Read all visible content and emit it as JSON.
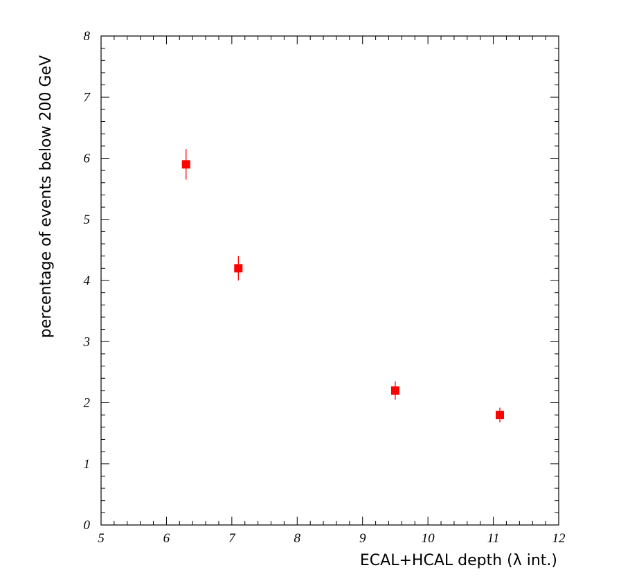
{
  "chart_data": {
    "type": "scatter",
    "title": "",
    "xlabel": "ECAL+HCAL  depth (λ int.)",
    "ylabel": "percentage of events below 200 GeV",
    "xlim": [
      5,
      12
    ],
    "ylim": [
      0,
      8
    ],
    "x_ticks": [
      "5",
      "6",
      "7",
      "8",
      "9",
      "10",
      "11",
      "12"
    ],
    "y_ticks": [
      "0",
      "1",
      "2",
      "3",
      "4",
      "5",
      "6",
      "7",
      "8"
    ],
    "grid": false,
    "legend": "none",
    "marker": "square",
    "marker_color": "#ff0000",
    "points": [
      {
        "x": 6.3,
        "y": 5.9,
        "err_low": 0.25,
        "err_high": 0.25
      },
      {
        "x": 7.1,
        "y": 4.2,
        "err_low": 0.2,
        "err_high": 0.2
      },
      {
        "x": 9.5,
        "y": 2.2,
        "err_low": 0.15,
        "err_high": 0.15
      },
      {
        "x": 11.1,
        "y": 1.8,
        "err_low": 0.12,
        "err_high": 0.12
      }
    ]
  }
}
